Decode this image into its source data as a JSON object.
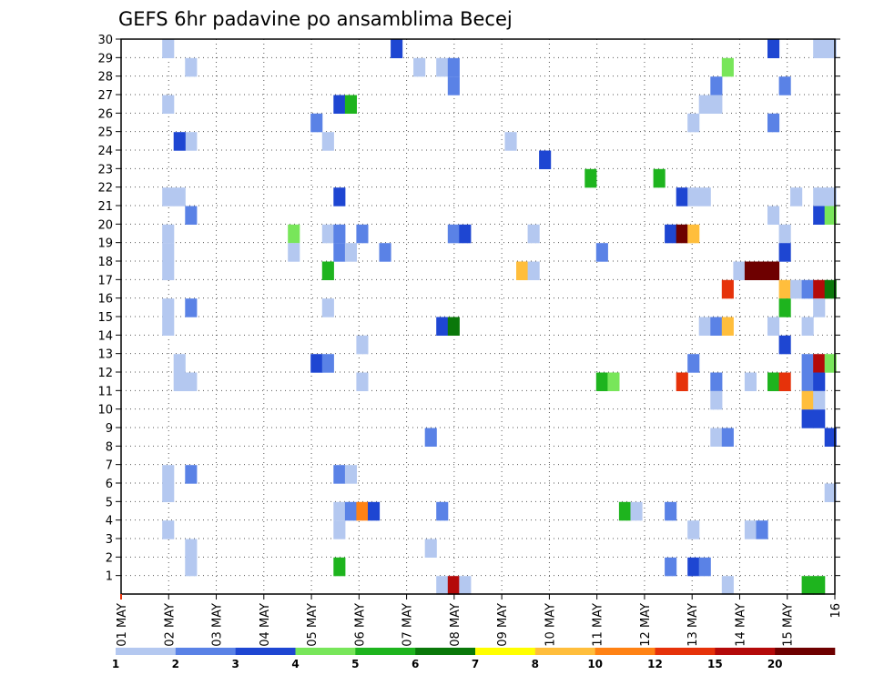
{
  "chart_data": {
    "type": "heatmap",
    "title": "GEFS 6hr padavine po ansamblima Becej",
    "x_tick_labels": [
      "01 MAY",
      "02 MAY",
      "03 MAY",
      "04 MAY",
      "05 MAY",
      "06 MAY",
      "07 MAY",
      "08 MAY",
      "09 MAY",
      "10 MAY",
      "11 MAY",
      "12 MAY",
      "13 MAY",
      "14 MAY",
      "15 MAY",
      "16"
    ],
    "y_tick_labels": [
      "1",
      "2",
      "3",
      "4",
      "5",
      "6",
      "7",
      "8",
      "9",
      "10",
      "11",
      "12",
      "13",
      "14",
      "15",
      "16",
      "17",
      "18",
      "19",
      "20",
      "21",
      "22",
      "23",
      "24",
      "25",
      "26",
      "27",
      "28",
      "29",
      "30"
    ],
    "x_range": [
      0,
      60
    ],
    "y_range": [
      0,
      30
    ],
    "grid": true,
    "colorbar": {
      "labels": [
        "1",
        "2",
        "3",
        "4",
        "5",
        "6",
        "7",
        "8",
        "10",
        "12",
        "15",
        "20"
      ],
      "colors": [
        "#b4c8f0",
        "#5a82e6",
        "#1e46d2",
        "#78e65a",
        "#1eb41e",
        "#0a780a",
        "#ffff00",
        "#ffbe3c",
        "#ff8214",
        "#e6320a",
        "#b40a0a",
        "#6e0000"
      ]
    },
    "cells": [
      [
        4,
        29,
        0
      ],
      [
        4,
        19,
        0
      ],
      [
        4,
        18,
        0
      ],
      [
        4,
        17,
        0
      ],
      [
        4,
        15,
        0
      ],
      [
        4,
        14,
        0
      ],
      [
        4,
        6,
        0
      ],
      [
        4,
        5,
        0
      ],
      [
        4,
        3,
        0
      ],
      [
        4,
        26,
        0
      ],
      [
        4,
        21,
        0
      ],
      [
        5,
        21,
        0
      ],
      [
        5,
        12,
        0
      ],
      [
        5,
        11,
        0
      ],
      [
        6,
        28,
        0
      ],
      [
        6,
        24,
        0
      ],
      [
        6,
        20,
        1
      ],
      [
        6,
        15,
        1
      ],
      [
        6,
        11,
        0
      ],
      [
        6,
        6,
        1
      ],
      [
        6,
        2,
        0
      ],
      [
        6,
        1,
        0
      ],
      [
        5,
        24,
        2
      ],
      [
        15,
        19,
        3
      ],
      [
        15,
        18,
        0
      ],
      [
        17,
        25,
        1
      ],
      [
        17,
        12,
        2
      ],
      [
        18,
        24,
        0
      ],
      [
        18,
        19,
        0
      ],
      [
        18,
        17,
        4
      ],
      [
        18,
        15,
        0
      ],
      [
        18,
        12,
        1
      ],
      [
        19,
        26,
        2
      ],
      [
        19,
        21,
        2
      ],
      [
        19,
        19,
        1
      ],
      [
        19,
        18,
        1
      ],
      [
        19,
        6,
        1
      ],
      [
        19,
        4,
        0
      ],
      [
        19,
        3,
        0
      ],
      [
        19,
        1,
        4
      ],
      [
        20,
        26,
        4
      ],
      [
        20,
        18,
        0
      ],
      [
        20,
        6,
        0
      ],
      [
        20,
        4,
        1
      ],
      [
        21,
        19,
        1
      ],
      [
        21,
        13,
        0
      ],
      [
        21,
        11,
        0
      ],
      [
        21,
        4,
        8
      ],
      [
        22,
        4,
        2
      ],
      [
        23,
        18,
        1
      ],
      [
        24,
        29,
        2
      ],
      [
        26,
        28,
        0
      ],
      [
        27,
        8,
        1
      ],
      [
        27,
        2,
        0
      ],
      [
        28,
        28,
        0
      ],
      [
        28,
        14,
        2
      ],
      [
        28,
        4,
        1
      ],
      [
        28,
        0,
        0
      ],
      [
        29,
        28,
        1
      ],
      [
        29,
        27,
        1
      ],
      [
        29,
        19,
        1
      ],
      [
        29,
        14,
        5
      ],
      [
        29,
        0,
        10
      ],
      [
        30,
        19,
        2
      ],
      [
        30,
        0,
        0
      ],
      [
        34,
        24,
        0
      ],
      [
        35,
        17,
        7
      ],
      [
        36,
        19,
        0
      ],
      [
        36,
        17,
        0
      ],
      [
        37,
        23,
        2
      ],
      [
        41,
        22,
        4
      ],
      [
        42,
        18,
        1
      ],
      [
        42,
        11,
        4
      ],
      [
        43,
        11,
        3
      ],
      [
        44,
        4,
        4
      ],
      [
        45,
        4,
        0
      ],
      [
        47,
        22,
        4
      ],
      [
        48,
        19,
        2
      ],
      [
        48,
        4,
        1
      ],
      [
        48,
        1,
        1
      ],
      [
        49,
        21,
        2
      ],
      [
        49,
        19,
        11
      ],
      [
        49,
        11,
        9
      ],
      [
        50,
        25,
        0
      ],
      [
        50,
        21,
        0
      ],
      [
        50,
        19,
        7
      ],
      [
        50,
        12,
        1
      ],
      [
        50,
        3,
        0
      ],
      [
        50,
        1,
        2
      ],
      [
        51,
        26,
        0
      ],
      [
        51,
        21,
        0
      ],
      [
        51,
        14,
        0
      ],
      [
        51,
        1,
        1
      ],
      [
        52,
        27,
        1
      ],
      [
        52,
        26,
        0
      ],
      [
        52,
        14,
        1
      ],
      [
        52,
        11,
        1
      ],
      [
        52,
        10,
        0
      ],
      [
        52,
        8,
        0
      ],
      [
        53,
        28,
        3
      ],
      [
        53,
        16,
        9
      ],
      [
        53,
        14,
        7
      ],
      [
        53,
        8,
        1
      ],
      [
        53,
        0,
        0
      ],
      [
        54,
        17,
        0
      ],
      [
        55,
        17,
        11
      ],
      [
        55,
        11,
        0
      ],
      [
        55,
        3,
        0
      ],
      [
        56,
        17,
        11
      ],
      [
        56,
        3,
        1
      ],
      [
        57,
        29,
        2
      ],
      [
        57,
        25,
        1
      ],
      [
        57,
        20,
        0
      ],
      [
        57,
        17,
        11
      ],
      [
        57,
        14,
        0
      ],
      [
        57,
        11,
        4
      ],
      [
        58,
        27,
        1
      ],
      [
        58,
        19,
        0
      ],
      [
        58,
        18,
        2
      ],
      [
        58,
        16,
        7
      ],
      [
        58,
        15,
        4
      ],
      [
        58,
        13,
        2
      ],
      [
        58,
        11,
        9
      ],
      [
        59,
        21,
        0
      ],
      [
        59,
        16,
        0
      ],
      [
        60,
        16,
        1
      ],
      [
        60,
        14,
        0
      ],
      [
        60,
        12,
        1
      ],
      [
        60,
        11,
        1
      ],
      [
        60,
        10,
        7
      ],
      [
        60,
        9,
        2
      ],
      [
        60,
        0,
        4
      ],
      [
        61,
        29,
        0
      ],
      [
        61,
        21,
        0
      ],
      [
        61,
        20,
        2
      ],
      [
        61,
        16,
        10
      ],
      [
        61,
        15,
        0
      ],
      [
        61,
        12,
        10
      ],
      [
        61,
        11,
        2
      ],
      [
        61,
        10,
        0
      ],
      [
        61,
        9,
        2
      ],
      [
        61,
        0,
        4
      ],
      [
        62,
        29,
        0
      ],
      [
        62,
        21,
        0
      ],
      [
        62,
        20,
        3
      ],
      [
        62,
        16,
        5
      ],
      [
        62,
        12,
        3
      ],
      [
        62,
        8,
        2
      ],
      [
        62,
        5,
        0
      ]
    ]
  }
}
